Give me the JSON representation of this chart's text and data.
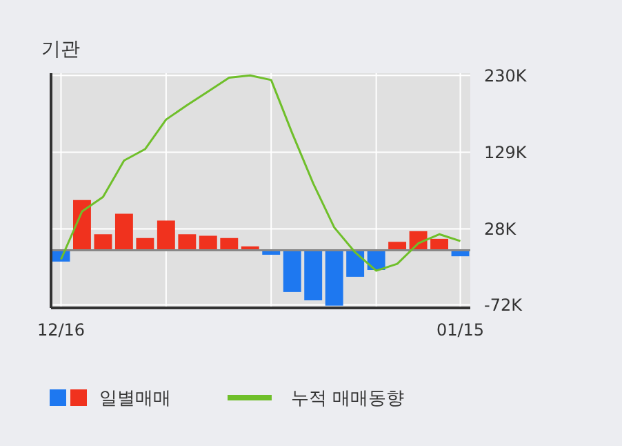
{
  "chart_data": {
    "type": "bar",
    "title": "기관",
    "categories": [
      "12/16",
      null,
      null,
      null,
      null,
      null,
      null,
      null,
      null,
      null,
      null,
      null,
      null,
      null,
      null,
      null,
      null,
      null,
      null,
      "01/15"
    ],
    "series": [
      {
        "name": "일별매매",
        "colors": [
          "#1e78f0",
          "#f0321e",
          "#f0321e",
          "#f0321e",
          "#f0321e",
          "#f0321e",
          "#f0321e",
          "#f0321e",
          "#f0321e",
          "#f0321e",
          "#1e78f0",
          "#1e78f0",
          "#1e78f0",
          "#1e78f0",
          "#1e78f0",
          "#1e78f0",
          "#f0321e",
          "#f0321e",
          "#f0321e",
          "#1e78f0"
        ],
        "values": [
          -15,
          66,
          21,
          48,
          16,
          39,
          21,
          19,
          16,
          5,
          -6,
          -55,
          -66,
          -73,
          -35,
          -26,
          11,
          25,
          15,
          -8
        ]
      },
      {
        "name": "누적 매매동향",
        "type": "line",
        "color": "#6fbf2a",
        "values": [
          -12,
          51,
          70,
          118,
          133,
          172,
          191,
          209,
          227,
          230,
          224,
          154,
          88,
          30,
          -3,
          -27,
          -18,
          9,
          21,
          12
        ]
      }
    ],
    "ylim": [
      -76,
      233
    ],
    "yticks": [
      {
        "value": 230,
        "label": "230K"
      },
      {
        "value": 129,
        "label": "129K"
      },
      {
        "value": 28,
        "label": "28K"
      },
      {
        "value": -72,
        "label": "-72K"
      }
    ],
    "grid": true,
    "legend": "bottom",
    "marker": "none"
  }
}
